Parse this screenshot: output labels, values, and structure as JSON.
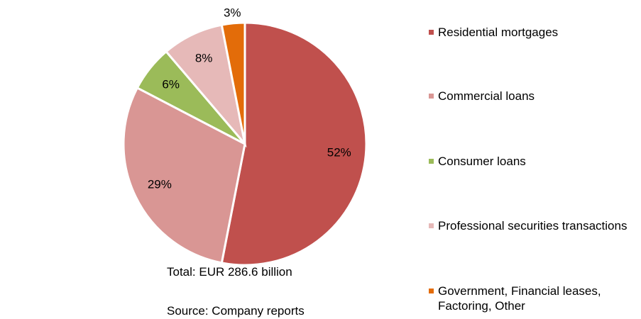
{
  "chart_data": {
    "type": "pie",
    "categories": [
      "Residential mortgages",
      "Commercial loans",
      "Consumer loans",
      "Professional securities transactions",
      "Government, Financial leases, Factoring, Other"
    ],
    "values": [
      52,
      29,
      6,
      8,
      3
    ],
    "value_labels": [
      "52%",
      "29%",
      "6%",
      "8%",
      "3%"
    ],
    "colors": [
      "#c0504d",
      "#d99694",
      "#9bbb59",
      "#e6b9b8",
      "#e36c09"
    ],
    "notes": [
      "Total: EUR 286.6 billion",
      "Source: Company reports"
    ],
    "legend": "right"
  }
}
